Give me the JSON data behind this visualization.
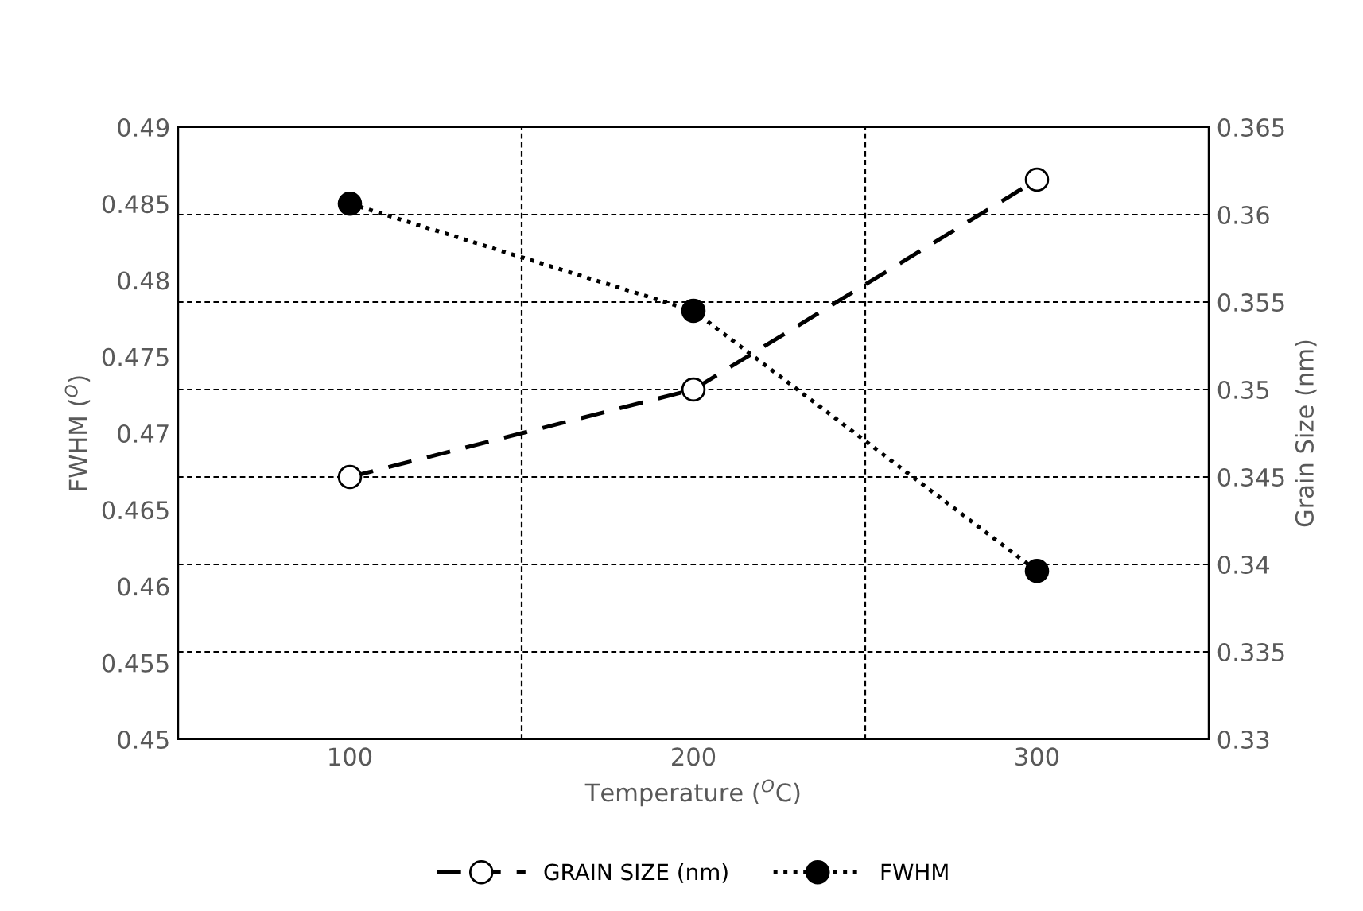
{
  "chart_data": {
    "type": "line",
    "categories": [
      "100",
      "200",
      "300"
    ],
    "xlabel": "Temperature ($^{O}$C)",
    "ylabel": "FWHM ($^{O}$)",
    "y2label": "Grain Size (nm)",
    "series": [
      {
        "name": "GRAIN SIZE (nm)",
        "color": "#000000",
        "values": [
          0.345,
          0.35,
          0.362
        ],
        "axis": "y2",
        "line_style": "dashed",
        "marker": "circle"
      },
      {
        "name": "FWHM",
        "color": "#000000",
        "values": [
          0.485,
          0.478,
          0.461
        ],
        "line_style": "dotted",
        "marker": "circle"
      }
    ],
    "ylim": [
      0.45,
      0.49
    ],
    "yticks": [
      {
        "value": 0.45,
        "label": "0.45"
      },
      {
        "value": 0.455,
        "label": "0.455"
      },
      {
        "value": 0.46,
        "label": "0.46"
      },
      {
        "value": 0.465,
        "label": "0.465"
      },
      {
        "value": 0.47,
        "label": "0.47"
      },
      {
        "value": 0.475,
        "label": "0.475"
      },
      {
        "value": 0.48,
        "label": "0.48"
      },
      {
        "value": 0.485,
        "label": "0.485"
      },
      {
        "value": 0.49,
        "label": "0.49"
      }
    ],
    "y2lim": [
      0.33,
      0.365
    ],
    "y2ticks": [
      {
        "value": 0.33,
        "label": "0.33"
      },
      {
        "value": 0.335,
        "label": "0.335"
      },
      {
        "value": 0.34,
        "label": "0.34"
      },
      {
        "value": 0.345,
        "label": "0.345"
      },
      {
        "value": 0.35,
        "label": "0.35"
      },
      {
        "value": 0.355,
        "label": "0.355"
      },
      {
        "value": 0.36,
        "label": "0.36"
      },
      {
        "value": 0.365,
        "label": "0.365"
      }
    ],
    "grid": true,
    "legend": "bottom"
  }
}
